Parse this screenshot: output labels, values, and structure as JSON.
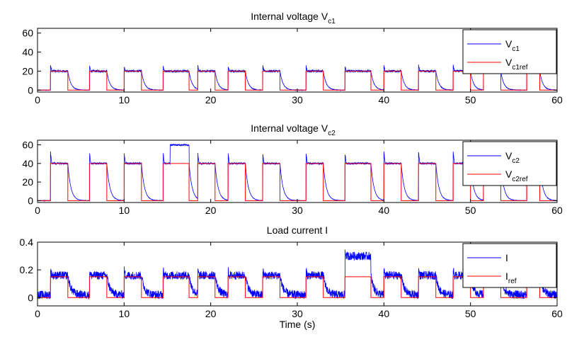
{
  "chart_data": [
    {
      "type": "line",
      "title": "Internal voltage V",
      "title_sub": "c1",
      "xlim": [
        0,
        60
      ],
      "ylim": [
        -2,
        65
      ],
      "xticks": [
        0,
        10,
        20,
        30,
        40,
        50,
        60
      ],
      "yticks": [
        0,
        20,
        40,
        60
      ],
      "legend_position": "top-right",
      "series": [
        {
          "name": "V",
          "name_sub": "c1",
          "color": "#0000ff",
          "kind": "measured",
          "high": 20,
          "low": 0,
          "noise": 1.2
        },
        {
          "name": "V",
          "name_sub": "c1ref",
          "color": "#ff0000",
          "kind": "reference",
          "high": 20,
          "low": 0
        }
      ]
    },
    {
      "type": "line",
      "title": "Internal voltage V",
      "title_sub": "c2",
      "xlim": [
        0,
        60
      ],
      "ylim": [
        -2,
        65
      ],
      "xticks": [
        0,
        10,
        20,
        30,
        40,
        50,
        60
      ],
      "yticks": [
        0,
        20,
        40,
        60
      ],
      "legend_position": "top-right",
      "series": [
        {
          "name": "V",
          "name_sub": "c2",
          "color": "#0000ff",
          "kind": "measured",
          "high": 40,
          "low": 0,
          "noise": 1.0,
          "saturation": {
            "start": 15.3,
            "end": 17.6,
            "value": 60
          }
        },
        {
          "name": "V",
          "name_sub": "c2ref",
          "color": "#ff0000",
          "kind": "reference",
          "high": 40,
          "low": 0
        }
      ]
    },
    {
      "type": "line",
      "title": "Load current I",
      "title_sub": "",
      "xlabel": "Time (s)",
      "xlim": [
        0,
        60
      ],
      "ylim": [
        -0.06,
        0.4
      ],
      "xticks": [
        0,
        10,
        20,
        30,
        40,
        50,
        60
      ],
      "yticks": [
        0,
        0.2,
        0.4
      ],
      "legend_position": "top-right",
      "series": [
        {
          "name": "I",
          "name_sub": "",
          "color": "#0000ff",
          "kind": "measured",
          "high": 0.16,
          "low": 0.02,
          "noise": 0.03,
          "saturation": {
            "start": 35.5,
            "end": 38.5,
            "value": 0.3
          }
        },
        {
          "name": "I",
          "name_sub": "ref",
          "color": "#ff0000",
          "kind": "reference",
          "high": 0.15,
          "low": 0
        }
      ]
    }
  ],
  "switching_periods_s": [
    [
      1.5,
      3.5
    ],
    [
      6,
      8
    ],
    [
      10,
      12
    ],
    [
      14.5,
      17.5
    ],
    [
      18.5,
      20.5
    ],
    [
      22,
      24
    ],
    [
      26,
      28
    ],
    [
      31,
      33
    ],
    [
      35.5,
      38.5
    ],
    [
      40,
      42
    ],
    [
      44,
      46
    ],
    [
      48,
      50
    ],
    [
      51.5,
      53.5
    ],
    [
      56.5,
      58
    ]
  ]
}
